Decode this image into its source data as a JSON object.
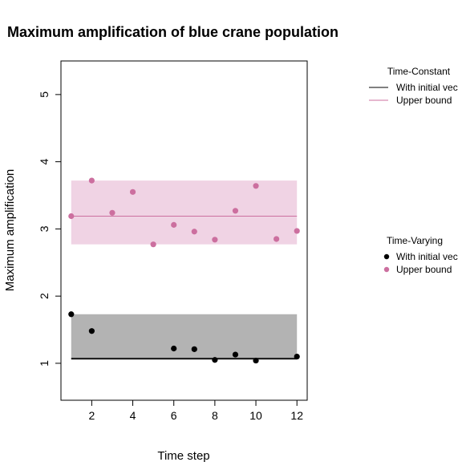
{
  "chart_data": {
    "type": "scatter",
    "title": "Maximum amplification of blue crane population",
    "xlabel": "Time step",
    "ylabel": "Maximum amplification",
    "xlim": [
      0.5,
      12.5
    ],
    "ylim": [
      0.45,
      5.5
    ],
    "xticks": [
      2,
      4,
      6,
      8,
      10,
      12
    ],
    "yticks": [
      1,
      2,
      3,
      4,
      5
    ],
    "grid": false,
    "colors": {
      "pink_point": "#cc6f9f",
      "pink_line": "#cc6f9f",
      "pink_band": "#f0d3e4",
      "black_point": "#000000",
      "black_line": "#000000",
      "gray_band": "#b3b3b3"
    },
    "bands": [
      {
        "series": "Time-Constant Upper bound",
        "x": [
          1,
          12
        ],
        "ymin": 2.77,
        "ymax": 3.72,
        "color": "#f0d3e4"
      },
      {
        "series": "Time-Constant With initial vector",
        "x": [
          1,
          12
        ],
        "ymin": 1.05,
        "ymax": 1.73,
        "color": "#b3b3b3"
      }
    ],
    "lines": [
      {
        "name": "Upper bound",
        "group": "Time-Constant",
        "x": [
          1,
          12
        ],
        "y": [
          3.19,
          3.19
        ],
        "color": "#cc6f9f"
      },
      {
        "name": "With initial vector",
        "group": "Time-Constant",
        "x": [
          1,
          12
        ],
        "y": [
          1.07,
          1.07
        ],
        "color": "#000000"
      }
    ],
    "series": [
      {
        "name": "Upper bound",
        "group": "Time-Varying",
        "color": "#cc6f9f",
        "x": [
          1,
          2,
          3,
          4,
          5,
          6,
          7,
          8,
          9,
          10,
          11,
          12
        ],
        "y": [
          3.19,
          3.72,
          3.24,
          3.55,
          2.77,
          3.06,
          2.96,
          2.84,
          3.27,
          3.64,
          2.85,
          2.97
        ]
      },
      {
        "name": "With initial vector",
        "group": "Time-Varying",
        "color": "#000000",
        "x": [
          1,
          2,
          6,
          7,
          8,
          9,
          10,
          12
        ],
        "y": [
          1.73,
          1.48,
          1.22,
          1.21,
          1.05,
          1.13,
          1.04,
          1.1
        ]
      }
    ],
    "legends": [
      {
        "title": "Time-Constant",
        "entries": [
          {
            "label": "With initial vec",
            "kind": "line",
            "color": "#000000"
          },
          {
            "label": "Upper bound",
            "kind": "line",
            "color": "#cc6f9f"
          }
        ]
      },
      {
        "title": "Time-Varying",
        "entries": [
          {
            "label": "With initial vec",
            "kind": "point",
            "color": "#000000"
          },
          {
            "label": "Upper bound",
            "kind": "point",
            "color": "#cc6f9f"
          }
        ]
      }
    ]
  }
}
